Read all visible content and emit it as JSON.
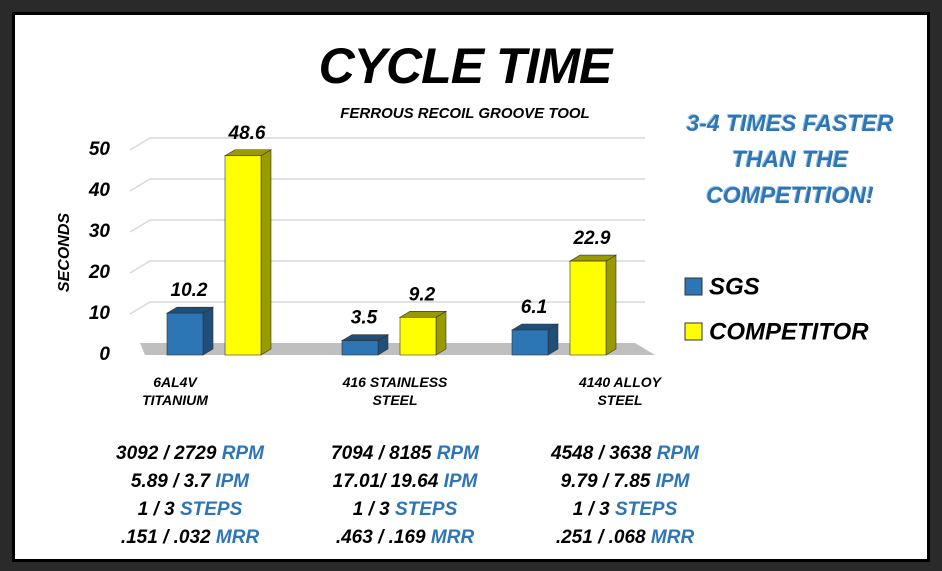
{
  "chart_data": {
    "type": "bar",
    "title": "CYCLE TIME",
    "subtitle": "FERROUS RECOIL GROOVE TOOL",
    "ylabel": "SECONDS",
    "annotation": "3-4 TIMES FASTER THAN THE COMPETITION!",
    "categories": [
      "6AL4V TITANIUM",
      "416 STAINLESS STEEL",
      "4140 ALLOY STEEL"
    ],
    "series": [
      {
        "name": "SGS",
        "color": "#2e75b6",
        "values": [
          10.2,
          3.5,
          6.1
        ]
      },
      {
        "name": "COMPETITOR",
        "color": "#ffff00",
        "values": [
          48.6,
          9.2,
          22.9
        ]
      }
    ],
    "ylim": [
      0,
      50
    ],
    "yticks": [
      0,
      10,
      20,
      30,
      40,
      50
    ],
    "grid": true,
    "legend": "right",
    "specs": [
      [
        {
          "text": "3092 / 2729",
          "unit": "RPM"
        },
        {
          "text": "5.89 / 3.7",
          "unit": "IPM"
        },
        {
          "text": "1 / 3",
          "unit": "STEPS"
        },
        {
          "text": ".151 / .032",
          "unit": "MRR"
        }
      ],
      [
        {
          "text": "7094 / 8185",
          "unit": "RPM"
        },
        {
          "text": "17.01/ 19.64",
          "unit": "IPM"
        },
        {
          "text": "1 / 3",
          "unit": "STEPS"
        },
        {
          "text": ".463 / .169",
          "unit": "MRR"
        }
      ],
      [
        {
          "text": "4548 / 3638",
          "unit": "RPM"
        },
        {
          "text": "9.79 / 7.85",
          "unit": "IPM"
        },
        {
          "text": "1 / 3",
          "unit": "STEPS"
        },
        {
          "text": ".251 / .068",
          "unit": "MRR"
        }
      ]
    ]
  }
}
